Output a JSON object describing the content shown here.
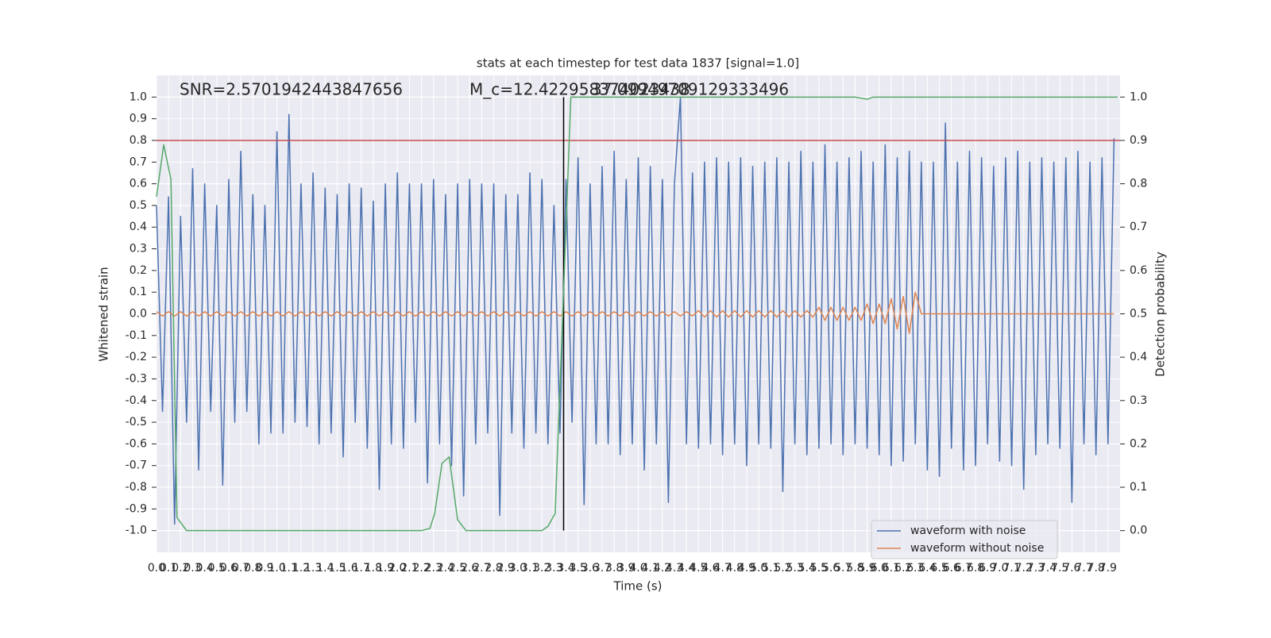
{
  "chart_data": {
    "type": "line",
    "title": "stats at each timestep for test data 1837 [signal=1.0]",
    "xlabel": "Time (s)",
    "ylabel": "Whitened strain",
    "y2label": "Detection probability",
    "annotations": [
      "SNR=2.5701942443847656",
      "M_c=12.422958374023438",
      "37.09949709129333496"
    ],
    "grid": true,
    "legend": "lower right",
    "xlim": [
      0,
      8
    ],
    "ylim": [
      -1.1,
      1.1
    ],
    "y2lim": [
      -0.05,
      1.05
    ],
    "xticks": [
      {
        "value": 0,
        "label": "0.0"
      },
      0.1,
      0.2,
      0.3,
      0.4,
      0.5,
      0.6,
      0.7,
      0.8,
      0.9,
      {
        "value": 1,
        "label": "1.0"
      },
      1.1,
      1.2,
      1.3,
      1.4,
      1.5,
      1.6,
      1.7,
      1.8,
      1.9,
      {
        "value": 2,
        "label": "2.0"
      },
      2.1,
      2.2,
      2.3,
      2.4,
      2.5,
      2.6,
      2.7,
      2.8,
      2.9,
      {
        "value": 3,
        "label": "3.0"
      },
      3.1,
      3.2,
      3.3,
      3.4,
      3.5,
      3.6,
      3.7,
      3.8,
      3.9,
      {
        "value": 4,
        "label": "4.0"
      },
      4.1,
      4.2,
      4.3,
      4.4,
      4.5,
      4.6,
      4.7,
      4.8,
      4.9,
      {
        "value": 5,
        "label": "5.0"
      },
      5.1,
      5.2,
      5.3,
      5.4,
      5.5,
      5.6,
      5.7,
      5.8,
      5.9,
      {
        "value": 6,
        "label": "6.0"
      },
      6.1,
      6.2,
      6.3,
      6.4,
      6.5,
      6.6,
      6.7,
      6.8,
      6.9,
      {
        "value": 7,
        "label": "7.0"
      },
      7.1,
      7.2,
      7.3,
      7.4,
      7.5,
      7.6,
      7.7,
      7.8,
      7.9
    ],
    "yticks": [
      {
        "value": -1,
        "label": "-1.0"
      },
      -0.9,
      -0.8,
      -0.7,
      -0.6,
      -0.5,
      -0.4,
      -0.3,
      -0.2,
      -0.1,
      {
        "value": 0,
        "label": "0.0"
      },
      0.1,
      0.2,
      0.3,
      0.4,
      0.5,
      0.6,
      0.7,
      0.8,
      0.9,
      {
        "value": 1,
        "label": "1.0"
      }
    ],
    "y2ticks": [
      {
        "value": 0,
        "label": "0.0"
      },
      0.1,
      0.2,
      0.3,
      0.4,
      0.5,
      0.6,
      0.7,
      0.8,
      0.9,
      {
        "value": 1,
        "label": "1.0"
      }
    ],
    "hline": {
      "y": 0.8,
      "color": "#c44e52"
    },
    "vline": {
      "x": 3.38,
      "ymin": -1,
      "ymax": 1,
      "color": "#000000"
    },
    "x": [
      0,
      0.05,
      0.1,
      0.15,
      0.2,
      0.25,
      0.3,
      0.35,
      0.4,
      0.45,
      0.5,
      0.55,
      0.6,
      0.65,
      0.7,
      0.75,
      0.8,
      0.85,
      0.9,
      0.95,
      1,
      1.05,
      1.1,
      1.15,
      1.2,
      1.25,
      1.3,
      1.35,
      1.4,
      1.45,
      1.5,
      1.55,
      1.6,
      1.65,
      1.7,
      1.75,
      1.8,
      1.85,
      1.9,
      1.95,
      2,
      2.05,
      2.1,
      2.15,
      2.2,
      2.25,
      2.3,
      2.35,
      2.4,
      2.45,
      2.5,
      2.55,
      2.6,
      2.65,
      2.7,
      2.75,
      2.8,
      2.85,
      2.9,
      2.95,
      3,
      3.05,
      3.1,
      3.15,
      3.2,
      3.25,
      3.3,
      3.35,
      3.4,
      3.45,
      3.5,
      3.55,
      3.6,
      3.65,
      3.7,
      3.75,
      3.8,
      3.85,
      3.9,
      3.95,
      4,
      4.05,
      4.1,
      4.15,
      4.2,
      4.25,
      4.3,
      4.35,
      4.4,
      4.45,
      4.5,
      4.55,
      4.6,
      4.65,
      4.7,
      4.75,
      4.8,
      4.85,
      4.9,
      4.95,
      5,
      5.05,
      5.1,
      5.15,
      5.2,
      5.25,
      5.3,
      5.35,
      5.4,
      5.45,
      5.5,
      5.55,
      5.6,
      5.65,
      5.7,
      5.75,
      5.8,
      5.85,
      5.9,
      5.95,
      6,
      6.05,
      6.1,
      6.15,
      6.2,
      6.25,
      6.3,
      6.35,
      6.4,
      6.45,
      6.5,
      6.55,
      6.6,
      6.65,
      6.7,
      6.75,
      6.8,
      6.85,
      6.9,
      6.95,
      7,
      7.05,
      7.1,
      7.15,
      7.2,
      7.25,
      7.3,
      7.35,
      7.4,
      7.45,
      7.5,
      7.55,
      7.6,
      7.65,
      7.7,
      7.75,
      7.8,
      7.85,
      7.9,
      7.95
    ],
    "series": [
      {
        "name": "waveform with noise",
        "color": "#4c72b0",
        "values": [
          0.5,
          -0.45,
          0.54,
          -0.97,
          0.45,
          -0.5,
          0.67,
          -0.72,
          0.6,
          -0.45,
          0.5,
          -0.79,
          0.62,
          -0.5,
          0.75,
          -0.45,
          0.55,
          -0.6,
          0.5,
          -0.55,
          0.84,
          -0.55,
          0.92,
          -0.5,
          0.6,
          -0.52,
          0.65,
          -0.6,
          0.58,
          -0.55,
          0.55,
          -0.66,
          0.6,
          -0.5,
          0.58,
          -0.62,
          0.52,
          -0.81,
          0.6,
          -0.6,
          0.65,
          -0.62,
          0.6,
          -0.5,
          0.6,
          -0.78,
          0.62,
          -0.6,
          0.55,
          -0.7,
          0.6,
          -0.84,
          0.62,
          -0.6,
          0.6,
          -0.55,
          0.6,
          -0.93,
          0.55,
          -0.55,
          0.55,
          -0.62,
          0.65,
          -0.55,
          0.62,
          -0.6,
          0.5,
          -0.55,
          0.62,
          -0.5,
          0.72,
          -0.88,
          0.6,
          -0.6,
          0.68,
          -0.6,
          0.75,
          -0.65,
          0.62,
          -0.6,
          0.72,
          -0.72,
          0.68,
          -0.6,
          0.62,
          -0.87,
          0.6,
          1.0,
          -0.6,
          0.65,
          -0.62,
          0.7,
          -0.6,
          0.72,
          -0.65,
          0.7,
          -0.6,
          0.72,
          -0.7,
          0.68,
          -0.6,
          0.7,
          -0.62,
          0.72,
          -0.82,
          0.7,
          -0.6,
          0.75,
          -0.65,
          0.7,
          -0.62,
          0.78,
          -0.6,
          0.7,
          -0.65,
          0.72,
          -0.6,
          0.75,
          -0.62,
          0.7,
          -0.65,
          0.78,
          -0.7,
          0.72,
          -0.68,
          0.75,
          -0.6,
          0.7,
          -0.72,
          0.7,
          -0.75,
          0.88,
          -0.62,
          0.7,
          -0.72,
          0.75,
          -0.7,
          0.72,
          -0.6,
          0.68,
          -0.68,
          0.72,
          -0.7,
          0.75,
          -0.81,
          0.7,
          -0.65,
          0.72,
          -0.6,
          0.7,
          -0.62,
          0.72,
          -0.87,
          0.75,
          -0.6,
          0.7,
          -0.65,
          0.72,
          -0.6,
          0.81
        ]
      },
      {
        "name": "waveform without noise",
        "color": "#dd8452",
        "values": [
          0.01,
          -0.01,
          0.01,
          -0.01,
          0.01,
          -0.01,
          0.01,
          -0.01,
          0.01,
          -0.01,
          0.01,
          -0.01,
          0.01,
          -0.01,
          0.01,
          -0.01,
          0.01,
          -0.01,
          0.01,
          -0.01,
          0.01,
          -0.01,
          0.01,
          -0.01,
          0.01,
          -0.01,
          0.01,
          -0.01,
          0.01,
          -0.01,
          0.01,
          -0.01,
          0.01,
          -0.01,
          0.01,
          -0.01,
          0.01,
          -0.01,
          0.01,
          -0.01,
          0.01,
          -0.01,
          0.01,
          -0.01,
          0.01,
          -0.01,
          0.01,
          -0.01,
          0.01,
          -0.01,
          0.01,
          -0.01,
          0.01,
          -0.01,
          0.01,
          -0.01,
          0.01,
          -0.01,
          0.01,
          -0.01,
          0.01,
          -0.01,
          0.01,
          -0.01,
          0.01,
          -0.01,
          0.01,
          -0.01,
          0.01,
          -0.01,
          0.01,
          -0.01,
          0.01,
          -0.01,
          0.01,
          -0.01,
          0.01,
          -0.01,
          0.01,
          -0.01,
          0.01,
          -0.01,
          0.01,
          -0.01,
          0.01,
          -0.01,
          0.01,
          -0.01,
          0.01,
          -0.01,
          0.015,
          -0.015,
          0.015,
          -0.015,
          0.015,
          -0.015,
          0.015,
          -0.015,
          0.015,
          -0.015,
          0.015,
          -0.015,
          0.015,
          -0.015,
          0.015,
          -0.015,
          0.015,
          -0.015,
          0.015,
          -0.015,
          0.03,
          -0.03,
          0.03,
          -0.03,
          0.03,
          -0.03,
          0.03,
          -0.03,
          0.045,
          -0.045,
          0.045,
          -0.045,
          0.07,
          -0.07,
          0.08,
          -0.09,
          0.1,
          0,
          0,
          0,
          0,
          0,
          0,
          0,
          0,
          0,
          0,
          0,
          0,
          0,
          0,
          0,
          0,
          0,
          0,
          0,
          0,
          0,
          0,
          0,
          0,
          0,
          0,
          0,
          0,
          0,
          0,
          0,
          0,
          0
        ]
      },
      {
        "color": "#55a868",
        "axis": "y2",
        "x": [
          0,
          0.06,
          0.12,
          0.17,
          0.25,
          2.2,
          2.27,
          2.31,
          2.37,
          2.43,
          2.5,
          2.57,
          3.2,
          3.25,
          3.31,
          3.4,
          3.44,
          5.8,
          5.9,
          5.95,
          7.98
        ],
        "values": [
          0.77,
          0.89,
          0.81,
          0.03,
          0.0,
          0.0,
          0.005,
          0.04,
          0.155,
          0.17,
          0.025,
          0.0,
          0.0,
          0.01,
          0.04,
          0.7,
          1.0,
          1.0,
          0.995,
          1.0,
          1.0
        ]
      }
    ]
  }
}
